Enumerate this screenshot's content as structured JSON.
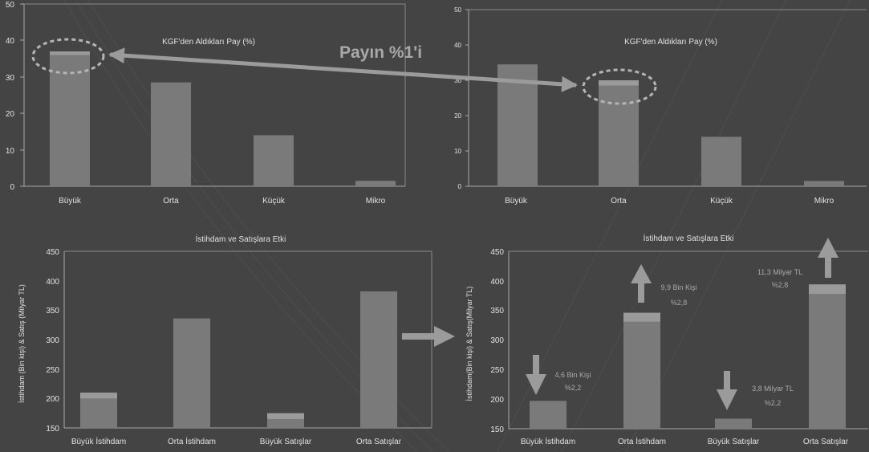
{
  "colors": {
    "background": "#444444",
    "bar": "#7a7a7a",
    "bar_highlight": "#9a9a9a",
    "axis": "#a9a9a9",
    "text": "#e2e2e2",
    "annotation_text": "#a8a8a8",
    "arrow": "#9b9b9b",
    "dashed_ring": "#b5b5b5"
  },
  "annotations": {
    "share_callout": "Payın %1'i",
    "buyuk_istihdam": [
      "4,6 Bin Kişi",
      "%2,2"
    ],
    "orta_istihdam": [
      "9,9 Bin Kişi",
      "%2,8"
    ],
    "buyuk_satislar": [
      "3,8 Milyar TL",
      "%2,2"
    ],
    "orta_satislar": [
      "11,3 Milyar TL",
      "%2,8"
    ]
  },
  "chart_data": [
    {
      "type": "bar",
      "title": "KGF'den Aldıkları Pay (%)",
      "categories": [
        "Büyük",
        "Orta",
        "Küçük",
        "Mikro"
      ],
      "values": [
        37,
        28.5,
        14,
        1.5
      ],
      "highlight": [
        [
          36,
          37
        ],
        null,
        null,
        null
      ],
      "ylim": [
        0,
        50
      ],
      "yticks": [
        0,
        10,
        20,
        30,
        40,
        50
      ]
    },
    {
      "type": "bar",
      "title": "KGF'den Aldıkları Pay (%)",
      "categories": [
        "Büyük",
        "Orta",
        "Küçük",
        "Mikro"
      ],
      "values": [
        34.5,
        30,
        14,
        1.5
      ],
      "highlight": [
        null,
        [
          28.5,
          30
        ],
        null,
        null
      ],
      "ylim": [
        0,
        50
      ],
      "yticks": [
        0,
        10,
        20,
        30,
        40,
        50
      ]
    },
    {
      "type": "bar",
      "title": "İstihdam ve Satışlara Etki",
      "ylabel": "İstihdam (Bin kişi) & Satış (Milyar TL)",
      "categories": [
        "Büyük İstihdam",
        "Orta İstihdam",
        "Büyük Satışlar",
        "Orta Satışlar"
      ],
      "values": [
        210,
        336,
        175,
        382
      ],
      "highlight": [
        [
          200,
          210
        ],
        null,
        [
          165,
          175
        ],
        null
      ],
      "ylim": [
        150,
        450
      ],
      "yticks": [
        150,
        200,
        250,
        300,
        350,
        400,
        450
      ]
    },
    {
      "type": "bar",
      "title": "İstihdam ve Satışlara Etki",
      "ylabel": "İstihdam(Bin kişi) & Satış(Milyar TL)",
      "categories": [
        "Büyük İstihdam",
        "Orta İstihdam",
        "Büyük Satışlar",
        "Orta Satışlar"
      ],
      "values": [
        197,
        346,
        167,
        394
      ],
      "highlight": [
        null,
        [
          331,
          346
        ],
        null,
        [
          378,
          394
        ]
      ],
      "ylim": [
        150,
        450
      ],
      "yticks": [
        150,
        200,
        250,
        300,
        350,
        400,
        450
      ]
    }
  ]
}
